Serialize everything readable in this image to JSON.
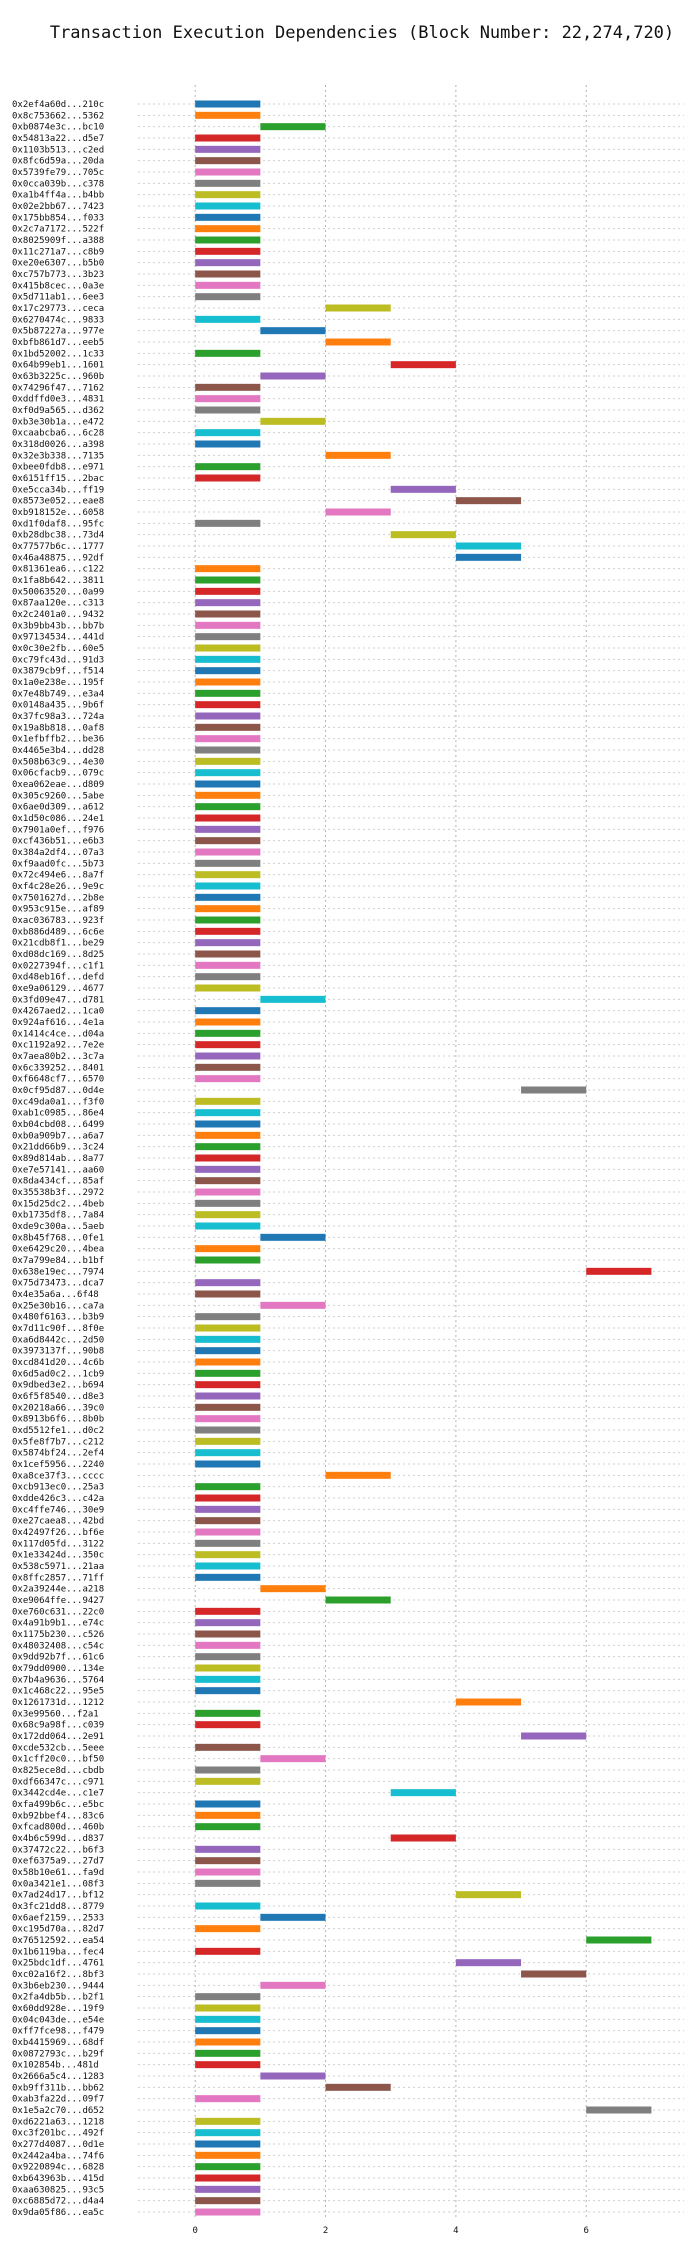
{
  "chart_data": {
    "type": "bar",
    "orientation": "horizontal",
    "title": "Transaction Execution Dependencies (Block Number: 22,274,720)",
    "xlabel": "",
    "ylabel": "",
    "xlim": [
      -1.0,
      7.5
    ],
    "xticks": [
      0,
      2,
      4,
      6
    ],
    "grid": "dotted both axes",
    "legend": "none",
    "palette": [
      "#1f77b4",
      "#ff7f0e",
      "#2ca02c",
      "#d62728",
      "#9467bd",
      "#8c564b",
      "#e377c2",
      "#7f7f7f",
      "#bcbd22",
      "#17becf"
    ],
    "transactions": [
      {
        "label": "0x2ef4a60d...210c",
        "start": 0,
        "end": 1
      },
      {
        "label": "0x8c753662...5362",
        "start": 0,
        "end": 1
      },
      {
        "label": "0xb0874e3c...bc10",
        "start": 1,
        "end": 2
      },
      {
        "label": "0x54813a22...d5e7",
        "start": 0,
        "end": 1
      },
      {
        "label": "0x1103b513...c2ed",
        "start": 0,
        "end": 1
      },
      {
        "label": "0x8fc6d59a...20da",
        "start": 0,
        "end": 1
      },
      {
        "label": "0x5739fe79...705c",
        "start": 0,
        "end": 1
      },
      {
        "label": "0x0cca039b...c378",
        "start": 0,
        "end": 1
      },
      {
        "label": "0xa1b4ff4a...b4bb",
        "start": 0,
        "end": 1
      },
      {
        "label": "0x02e2bb67...7423",
        "start": 0,
        "end": 1
      },
      {
        "label": "0x175bb854...f033",
        "start": 0,
        "end": 1
      },
      {
        "label": "0x2c7a7172...522f",
        "start": 0,
        "end": 1
      },
      {
        "label": "0x8025909f...a388",
        "start": 0,
        "end": 1
      },
      {
        "label": "0x11c271a7...c8b9",
        "start": 0,
        "end": 1
      },
      {
        "label": "0xe20e6307...b5b0",
        "start": 0,
        "end": 1
      },
      {
        "label": "0xc757b773...3b23",
        "start": 0,
        "end": 1
      },
      {
        "label": "0x415b8cec...0a3e",
        "start": 0,
        "end": 1
      },
      {
        "label": "0x5d711ab1...6ee3",
        "start": 0,
        "end": 1
      },
      {
        "label": "0x17c29773...ceca",
        "start": 2,
        "end": 3
      },
      {
        "label": "0x6270474c...9833",
        "start": 0,
        "end": 1
      },
      {
        "label": "0x5b87227a...977e",
        "start": 1,
        "end": 2
      },
      {
        "label": "0xbfb861d7...eeb5",
        "start": 2,
        "end": 3
      },
      {
        "label": "0x1bd52002...1c33",
        "start": 0,
        "end": 1
      },
      {
        "label": "0x64b99eb1...1601",
        "start": 3,
        "end": 4
      },
      {
        "label": "0x63b3225c...960b",
        "start": 1,
        "end": 2
      },
      {
        "label": "0x74296f47...7162",
        "start": 0,
        "end": 1
      },
      {
        "label": "0xddffd0e3...4831",
        "start": 0,
        "end": 1
      },
      {
        "label": "0xf0d9a565...d362",
        "start": 0,
        "end": 1
      },
      {
        "label": "0xb3e30b1a...e472",
        "start": 1,
        "end": 2
      },
      {
        "label": "0xcaabcba6...6c28",
        "start": 0,
        "end": 1
      },
      {
        "label": "0x318d0026...a398",
        "start": 0,
        "end": 1
      },
      {
        "label": "0x32e3b338...7135",
        "start": 2,
        "end": 3
      },
      {
        "label": "0xbee0fdb8...e971",
        "start": 0,
        "end": 1
      },
      {
        "label": "0x6151ff15...2bac",
        "start": 0,
        "end": 1
      },
      {
        "label": "0xe5cca34b...ff19",
        "start": 3,
        "end": 4
      },
      {
        "label": "0x8573e052...eae8",
        "start": 4,
        "end": 5
      },
      {
        "label": "0xb918152e...6058",
        "start": 2,
        "end": 3
      },
      {
        "label": "0xd1f0daf8...95fc",
        "start": 0,
        "end": 1
      },
      {
        "label": "0xb28dbc38...73d4",
        "start": 3,
        "end": 4
      },
      {
        "label": "0x77577b6c...1777",
        "start": 4,
        "end": 5
      },
      {
        "label": "0x46a48875...92df",
        "start": 4,
        "end": 5
      },
      {
        "label": "0x81361ea6...c122",
        "start": 0,
        "end": 1
      },
      {
        "label": "0x1fa8b642...3811",
        "start": 0,
        "end": 1
      },
      {
        "label": "0x50063520...0a99",
        "start": 0,
        "end": 1
      },
      {
        "label": "0x87aa120e...c313",
        "start": 0,
        "end": 1
      },
      {
        "label": "0x2c2401a0...9432",
        "start": 0,
        "end": 1
      },
      {
        "label": "0x3b9bb43b...bb7b",
        "start": 0,
        "end": 1
      },
      {
        "label": "0x97134534...441d",
        "start": 0,
        "end": 1
      },
      {
        "label": "0x0c30e2fb...60e5",
        "start": 0,
        "end": 1
      },
      {
        "label": "0xc79fc43d...91d3",
        "start": 0,
        "end": 1
      },
      {
        "label": "0x3879cb9f...f514",
        "start": 0,
        "end": 1
      },
      {
        "label": "0x1a0e238e...195f",
        "start": 0,
        "end": 1
      },
      {
        "label": "0x7e48b749...e3a4",
        "start": 0,
        "end": 1
      },
      {
        "label": "0x0148a435...9b6f",
        "start": 0,
        "end": 1
      },
      {
        "label": "0x37fc98a3...724a",
        "start": 0,
        "end": 1
      },
      {
        "label": "0x19a8b818...0af8",
        "start": 0,
        "end": 1
      },
      {
        "label": "0x1efbffb2...be36",
        "start": 0,
        "end": 1
      },
      {
        "label": "0x4465e3b4...dd28",
        "start": 0,
        "end": 1
      },
      {
        "label": "0x508b63c9...4e30",
        "start": 0,
        "end": 1
      },
      {
        "label": "0x06cfacb9...079c",
        "start": 0,
        "end": 1
      },
      {
        "label": "0xea062eae...d809",
        "start": 0,
        "end": 1
      },
      {
        "label": "0x305c9260...5abe",
        "start": 0,
        "end": 1
      },
      {
        "label": "0x6ae0d309...a612",
        "start": 0,
        "end": 1
      },
      {
        "label": "0x1d50c086...24e1",
        "start": 0,
        "end": 1
      },
      {
        "label": "0x7901a0ef...f976",
        "start": 0,
        "end": 1
      },
      {
        "label": "0xcf436b51...e6b3",
        "start": 0,
        "end": 1
      },
      {
        "label": "0x384a2df4...07a3",
        "start": 0,
        "end": 1
      },
      {
        "label": "0xf9aad0fc...5b73",
        "start": 0,
        "end": 1
      },
      {
        "label": "0x72c494e6...8a7f",
        "start": 0,
        "end": 1
      },
      {
        "label": "0xf4c28e26...9e9c",
        "start": 0,
        "end": 1
      },
      {
        "label": "0x7501627d...2b8e",
        "start": 0,
        "end": 1
      },
      {
        "label": "0x953c915e...af89",
        "start": 0,
        "end": 1
      },
      {
        "label": "0xac036783...923f",
        "start": 0,
        "end": 1
      },
      {
        "label": "0xb886d489...6c6e",
        "start": 0,
        "end": 1
      },
      {
        "label": "0x21cdb8f1...be29",
        "start": 0,
        "end": 1
      },
      {
        "label": "0xd08dc169...8d25",
        "start": 0,
        "end": 1
      },
      {
        "label": "0x0227394f...c1f1",
        "start": 0,
        "end": 1
      },
      {
        "label": "0xd48eb16f...defd",
        "start": 0,
        "end": 1
      },
      {
        "label": "0xe9a06129...4677",
        "start": 0,
        "end": 1
      },
      {
        "label": "0x3fd09e47...d781",
        "start": 1,
        "end": 2
      },
      {
        "label": "0x4267aed2...1ca0",
        "start": 0,
        "end": 1
      },
      {
        "label": "0x924af616...4e1a",
        "start": 0,
        "end": 1
      },
      {
        "label": "0x1414c4ce...d04a",
        "start": 0,
        "end": 1
      },
      {
        "label": "0xc1192a92...7e2e",
        "start": 0,
        "end": 1
      },
      {
        "label": "0x7aea80b2...3c7a",
        "start": 0,
        "end": 1
      },
      {
        "label": "0x6c339252...8401",
        "start": 0,
        "end": 1
      },
      {
        "label": "0xf6648cf7...6570",
        "start": 0,
        "end": 1
      },
      {
        "label": "0x0cf95d87...0d4e",
        "start": 5,
        "end": 6
      },
      {
        "label": "0xc49da0a1...f3f0",
        "start": 0,
        "end": 1
      },
      {
        "label": "0xab1c0985...86e4",
        "start": 0,
        "end": 1
      },
      {
        "label": "0xb04cbd08...6499",
        "start": 0,
        "end": 1
      },
      {
        "label": "0xb0a909b7...a6a7",
        "start": 0,
        "end": 1
      },
      {
        "label": "0x21dd66b9...3c24",
        "start": 0,
        "end": 1
      },
      {
        "label": "0x89d814ab...8a77",
        "start": 0,
        "end": 1
      },
      {
        "label": "0xe7e57141...aa60",
        "start": 0,
        "end": 1
      },
      {
        "label": "0x8da434cf...85af",
        "start": 0,
        "end": 1
      },
      {
        "label": "0x35538b3f...2972",
        "start": 0,
        "end": 1
      },
      {
        "label": "0x15d25dc2...4beb",
        "start": 0,
        "end": 1
      },
      {
        "label": "0xb1735df8...7a84",
        "start": 0,
        "end": 1
      },
      {
        "label": "0xde9c300a...5aeb",
        "start": 0,
        "end": 1
      },
      {
        "label": "0x8b45f768...0fe1",
        "start": 1,
        "end": 2
      },
      {
        "label": "0xe6429c20...4bea",
        "start": 0,
        "end": 1
      },
      {
        "label": "0x7a799e84...b1bf",
        "start": 0,
        "end": 1
      },
      {
        "label": "0x638e19ec...7974",
        "start": 6,
        "end": 7
      },
      {
        "label": "0x75d73473...dca7",
        "start": 0,
        "end": 1
      },
      {
        "label": "0x4e35a6a...6f48",
        "start": 0,
        "end": 1
      },
      {
        "label": "0x25e30b16...ca7a",
        "start": 1,
        "end": 2
      },
      {
        "label": "0x480f6163...b3b9",
        "start": 0,
        "end": 1
      },
      {
        "label": "0x7d11c90f...8f0e",
        "start": 0,
        "end": 1
      },
      {
        "label": "0xa6d8442c...2d50",
        "start": 0,
        "end": 1
      },
      {
        "label": "0x3973137f...90b8",
        "start": 0,
        "end": 1
      },
      {
        "label": "0xcd841d20...4c6b",
        "start": 0,
        "end": 1
      },
      {
        "label": "0x6d5ad0c2...1cb9",
        "start": 0,
        "end": 1
      },
      {
        "label": "0x9dbed3e2...b694",
        "start": 0,
        "end": 1
      },
      {
        "label": "0x6f5f8540...d8e3",
        "start": 0,
        "end": 1
      },
      {
        "label": "0x20218a66...39c0",
        "start": 0,
        "end": 1
      },
      {
        "label": "0x8913b6f6...8b0b",
        "start": 0,
        "end": 1
      },
      {
        "label": "0xd5512fe1...d0c2",
        "start": 0,
        "end": 1
      },
      {
        "label": "0x5fe8f7b7...c212",
        "start": 0,
        "end": 1
      },
      {
        "label": "0x5874bf24...2ef4",
        "start": 0,
        "end": 1
      },
      {
        "label": "0x1cef5956...2240",
        "start": 0,
        "end": 1
      },
      {
        "label": "0xa8ce37f3...cccc",
        "start": 2,
        "end": 3
      },
      {
        "label": "0xcb913ec0...25a3",
        "start": 0,
        "end": 1
      },
      {
        "label": "0xdde426c3...c42a",
        "start": 0,
        "end": 1
      },
      {
        "label": "0xc4ffe746...30e9",
        "start": 0,
        "end": 1
      },
      {
        "label": "0xe27caea8...42bd",
        "start": 0,
        "end": 1
      },
      {
        "label": "0x42497f26...bf6e",
        "start": 0,
        "end": 1
      },
      {
        "label": "0x117d05fd...3122",
        "start": 0,
        "end": 1
      },
      {
        "label": "0x1e33424d...350c",
        "start": 0,
        "end": 1
      },
      {
        "label": "0x538c5971...21aa",
        "start": 0,
        "end": 1
      },
      {
        "label": "0x8ffc2857...71ff",
        "start": 0,
        "end": 1
      },
      {
        "label": "0x2a39244e...a218",
        "start": 1,
        "end": 2
      },
      {
        "label": "0xe9064ffe...9427",
        "start": 2,
        "end": 3
      },
      {
        "label": "0xe760c631...22c0",
        "start": 0,
        "end": 1
      },
      {
        "label": "0x4a91b9b1...e74c",
        "start": 0,
        "end": 1
      },
      {
        "label": "0x1175b230...c526",
        "start": 0,
        "end": 1
      },
      {
        "label": "0x48032408...c54c",
        "start": 0,
        "end": 1
      },
      {
        "label": "0x9dd92b7f...61c6",
        "start": 0,
        "end": 1
      },
      {
        "label": "0x79dd0900...134e",
        "start": 0,
        "end": 1
      },
      {
        "label": "0x7b4a9636...5764",
        "start": 0,
        "end": 1
      },
      {
        "label": "0x1c468c22...95e5",
        "start": 0,
        "end": 1
      },
      {
        "label": "0x1261731d...1212",
        "start": 4,
        "end": 5
      },
      {
        "label": "0x3e99560...f2a1",
        "start": 0,
        "end": 1
      },
      {
        "label": "0x68c9a98f...c039",
        "start": 0,
        "end": 1
      },
      {
        "label": "0x172dd064...2e91",
        "start": 5,
        "end": 6
      },
      {
        "label": "0xcde532cb...5eee",
        "start": 0,
        "end": 1
      },
      {
        "label": "0x1cff20c0...bf50",
        "start": 1,
        "end": 2
      },
      {
        "label": "0x825ece8d...cbdb",
        "start": 0,
        "end": 1
      },
      {
        "label": "0xdf66347c...c971",
        "start": 0,
        "end": 1
      },
      {
        "label": "0x3442cd4e...c1e7",
        "start": 3,
        "end": 4
      },
      {
        "label": "0xfa499b6c...e5bc",
        "start": 0,
        "end": 1
      },
      {
        "label": "0xb92bbef4...83c6",
        "start": 0,
        "end": 1
      },
      {
        "label": "0xfcad800d...460b",
        "start": 0,
        "end": 1
      },
      {
        "label": "0x4b6c599d...d837",
        "start": 3,
        "end": 4
      },
      {
        "label": "0x37472c22...b6f3",
        "start": 0,
        "end": 1
      },
      {
        "label": "0xef6375a9...27d7",
        "start": 0,
        "end": 1
      },
      {
        "label": "0x58b10e61...fa9d",
        "start": 0,
        "end": 1
      },
      {
        "label": "0x0a3421e1...08f3",
        "start": 0,
        "end": 1
      },
      {
        "label": "0x7ad24d17...bf12",
        "start": 4,
        "end": 5
      },
      {
        "label": "0x3fc21dd8...8779",
        "start": 0,
        "end": 1
      },
      {
        "label": "0x6aef2159...2533",
        "start": 1,
        "end": 2
      },
      {
        "label": "0xc195d70a...82d7",
        "start": 0,
        "end": 1
      },
      {
        "label": "0x76512592...ea54",
        "start": 6,
        "end": 7
      },
      {
        "label": "0x1b6119ba...fec4",
        "start": 0,
        "end": 1
      },
      {
        "label": "0x25bdc1df...4761",
        "start": 4,
        "end": 5
      },
      {
        "label": "0xc02a16f2...8bf3",
        "start": 5,
        "end": 6
      },
      {
        "label": "0x3b6eb230...9444",
        "start": 1,
        "end": 2
      },
      {
        "label": "0x2fa4db5b...b2f1",
        "start": 0,
        "end": 1
      },
      {
        "label": "0x60dd928e...19f9",
        "start": 0,
        "end": 1
      },
      {
        "label": "0x04c043de...e54e",
        "start": 0,
        "end": 1
      },
      {
        "label": "0xff7fce98...f479",
        "start": 0,
        "end": 1
      },
      {
        "label": "0xb4415969...68df",
        "start": 0,
        "end": 1
      },
      {
        "label": "0x0872793c...b29f",
        "start": 0,
        "end": 1
      },
      {
        "label": "0x102854b...481d",
        "start": 0,
        "end": 1
      },
      {
        "label": "0x2666a5c4...1283",
        "start": 1,
        "end": 2
      },
      {
        "label": "0xb9ff311b...bb62",
        "start": 2,
        "end": 3
      },
      {
        "label": "0xab3fa22d...09f7",
        "start": 0,
        "end": 1
      },
      {
        "label": "0x1e5a2c70...d652",
        "start": 6,
        "end": 7
      },
      {
        "label": "0xd6221a63...1218",
        "start": 0,
        "end": 1
      },
      {
        "label": "0xc3f201bc...492f",
        "start": 0,
        "end": 1
      },
      {
        "label": "0x277d4087...0d1e",
        "start": 0,
        "end": 1
      },
      {
        "label": "0x2442a4ba...74f6",
        "start": 0,
        "end": 1
      },
      {
        "label": "0x9220894c...6828",
        "start": 0,
        "end": 1
      },
      {
        "label": "0xb643963b...415d",
        "start": 0,
        "end": 1
      },
      {
        "label": "0xaa630825...93c5",
        "start": 0,
        "end": 1
      },
      {
        "label": "0xc6885d72...d4a4",
        "start": 0,
        "end": 1
      },
      {
        "label": "0x9da05f86...ea5c",
        "start": 0,
        "end": 1
      }
    ]
  }
}
